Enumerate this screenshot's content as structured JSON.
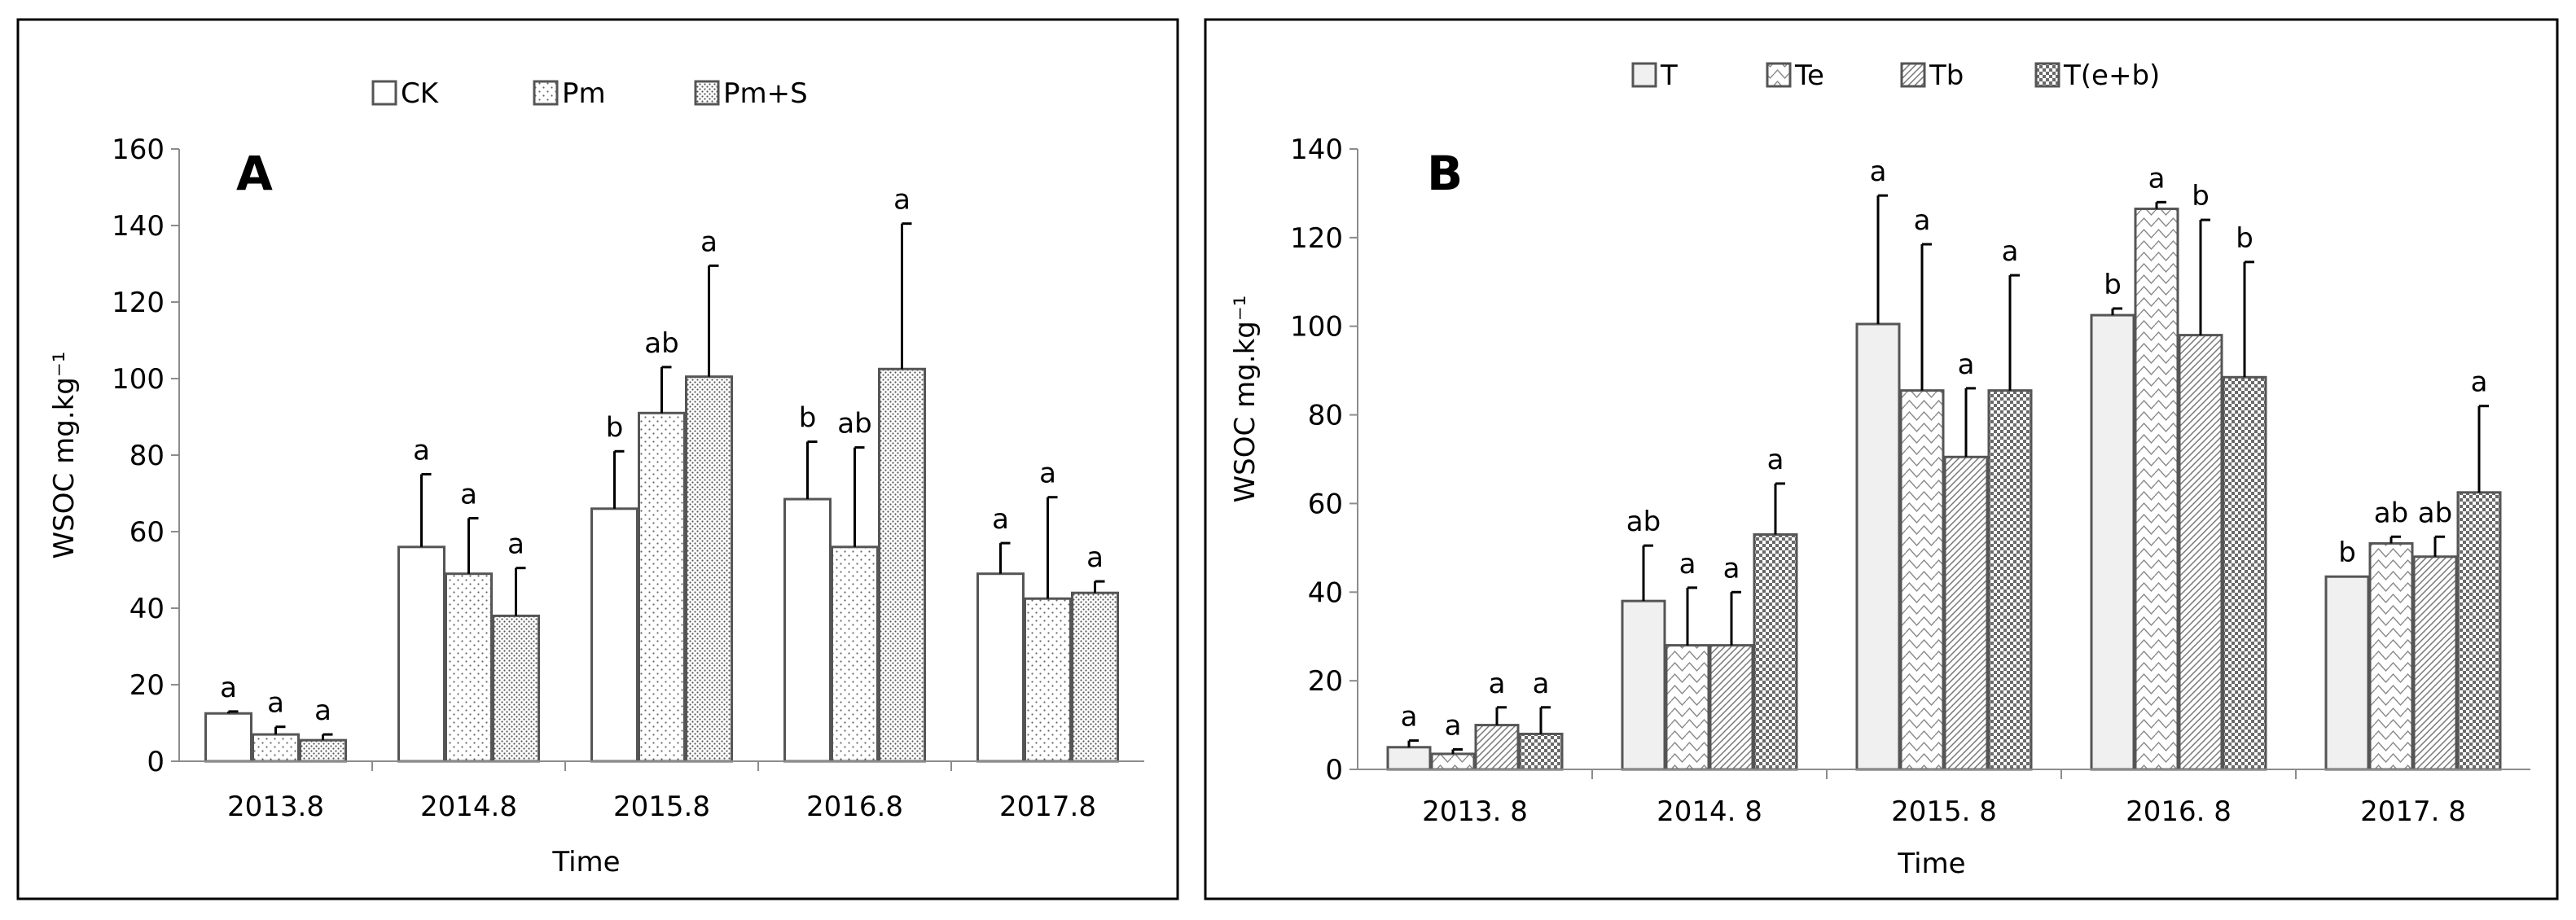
{
  "chart_data": [
    {
      "type": "bar",
      "panel_label": "A",
      "xlabel": "Time",
      "ylabel": "WSOC mg.kg⁻¹",
      "ylim": [
        0,
        160
      ],
      "yticks": [
        0,
        20,
        40,
        60,
        80,
        100,
        120,
        140,
        160
      ],
      "categories": [
        "2013.8",
        "2014.8",
        "2015.8",
        "2016.8",
        "2017.8"
      ],
      "legend_position": "top-center",
      "series": [
        {
          "name": "CK",
          "pattern": "plain",
          "values": [
            12.5,
            56,
            66,
            68.5,
            49
          ],
          "errors": [
            0.5,
            19,
            15,
            15,
            8
          ],
          "labels": [
            "a",
            "a",
            "b",
            "b",
            "a"
          ]
        },
        {
          "name": "Pm",
          "pattern": "dots-fine",
          "values": [
            7,
            49,
            91,
            56,
            42.5
          ],
          "errors": [
            2,
            14.5,
            12,
            26,
            26.5
          ],
          "labels": [
            "a",
            "a",
            "ab",
            "ab",
            "a"
          ]
        },
        {
          "name": "Pm+S",
          "pattern": "dots-dense",
          "values": [
            5.5,
            38,
            100.5,
            102.5,
            44
          ],
          "errors": [
            1.5,
            12.5,
            29,
            38,
            3
          ],
          "labels": [
            "a",
            "a",
            "a",
            "a",
            "a"
          ]
        }
      ]
    },
    {
      "type": "bar",
      "panel_label": "B",
      "xlabel": "Time",
      "ylabel": "WSOC mg.kg⁻¹",
      "ylim": [
        0,
        140
      ],
      "yticks": [
        0,
        20,
        40,
        60,
        80,
        100,
        120,
        140
      ],
      "categories": [
        "2013. 8",
        "2014. 8",
        "2015. 8",
        "2016. 8",
        "2017. 8"
      ],
      "legend_position": "top-center",
      "series": [
        {
          "name": "T",
          "pattern": "solid-light",
          "values": [
            5,
            38,
            100.5,
            102.5,
            43.5
          ],
          "errors": [
            1.5,
            12.5,
            29,
            1.5,
            0
          ],
          "labels": [
            "a",
            "ab",
            "a",
            "b",
            "b"
          ]
        },
        {
          "name": "Te",
          "pattern": "zigzag",
          "values": [
            3.5,
            28,
            85.5,
            126.5,
            51
          ],
          "errors": [
            1,
            13,
            33,
            1.5,
            1.5
          ],
          "labels": [
            "a",
            "a",
            "a",
            "a",
            "ab"
          ]
        },
        {
          "name": "Tb",
          "pattern": "diagonal",
          "values": [
            10,
            28,
            70.5,
            98,
            48
          ],
          "errors": [
            4,
            12,
            15.5,
            26,
            4.5
          ],
          "labels": [
            "a",
            "a",
            "a",
            "b",
            "ab"
          ]
        },
        {
          "name": "T(e+b)",
          "pattern": "checker",
          "values": [
            8,
            53,
            85.5,
            88.5,
            62.5
          ],
          "errors": [
            6,
            11.5,
            26,
            26,
            19.5
          ],
          "labels": [
            "a",
            "a",
            "a",
            "b",
            "a"
          ]
        }
      ]
    }
  ]
}
